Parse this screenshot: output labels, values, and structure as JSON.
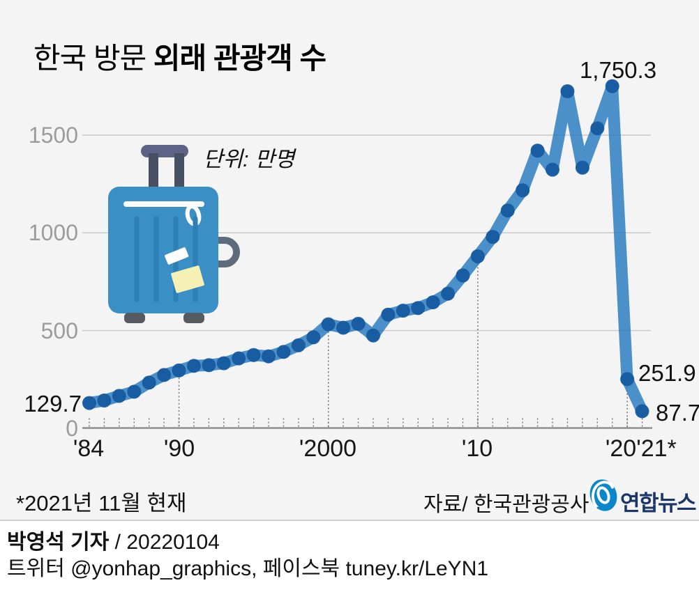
{
  "title": {
    "regular": "한국 방문 ",
    "bold": "외래 관광객 수"
  },
  "unit_label": "단위: 만명",
  "chart_data": {
    "type": "line",
    "title": "한국 방문 외래 관광객 수",
    "ylabel": "만명",
    "x": [
      1984,
      1985,
      1986,
      1987,
      1988,
      1989,
      1990,
      1991,
      1992,
      1993,
      1994,
      1995,
      1996,
      1997,
      1998,
      1999,
      2000,
      2001,
      2002,
      2003,
      2004,
      2005,
      2006,
      2007,
      2008,
      2009,
      2010,
      2011,
      2012,
      2013,
      2014,
      2015,
      2016,
      2017,
      2018,
      2019,
      2020,
      2021
    ],
    "values": [
      129.7,
      142.6,
      165.9,
      187.5,
      234.0,
      272.8,
      295.9,
      319.6,
      323.1,
      333.1,
      358.0,
      375.3,
      368.4,
      390.8,
      425.0,
      465.9,
      532.2,
      514.7,
      534.7,
      475.3,
      581.8,
      602.2,
      615.5,
      644.8,
      689.1,
      781.8,
      879.8,
      979.5,
      1114.0,
      1217.6,
      1420.2,
      1323.1,
      1724.2,
      1333.6,
      1534.7,
      1750.3,
      251.9,
      87.7
    ],
    "ylim": [
      0,
      1800
    ],
    "yticks": [
      0,
      500,
      1000,
      1500
    ],
    "ytick_labels": [
      "0",
      "500",
      "1000",
      "1500"
    ],
    "xtick_labels": [
      "'84",
      "'90",
      "'2000",
      "'10",
      "'20",
      "'21*"
    ],
    "guide_years": [
      1990,
      2000,
      2010,
      2020
    ],
    "point_labels": {
      "start": "129.7",
      "peak": "1,750.3",
      "y2020": "251.9",
      "y2021": "87.7"
    },
    "grid": true,
    "legend": false,
    "line_color": "#2e7ec1",
    "dot_color": "#155a9f",
    "grid_color": "#c9c9c9",
    "axis_color": "#8e8e8e",
    "tick_color": "#6f6f6f"
  },
  "footer": {
    "note": "*2021년 11월 현재",
    "source": "자료/ 한국관광공사",
    "logo_text": "연합뉴스"
  },
  "credits": {
    "byline_bold": "박영석 기자",
    "byline_rest": " /  20220104",
    "social": "트위터 @yonhap_graphics, 페이스북 tuney.kr/LeYN1"
  }
}
